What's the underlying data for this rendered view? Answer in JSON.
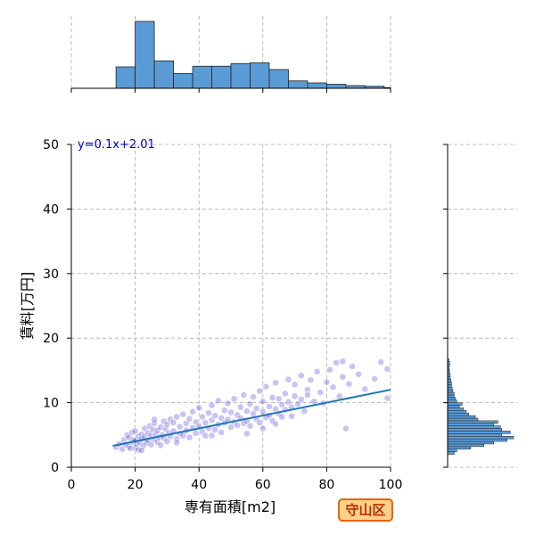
{
  "chart_data": {
    "type": "scatter",
    "xlabel": "専有面積[m2]",
    "ylabel": "賃料[万円]",
    "xlim": [
      0,
      100
    ],
    "ylim": [
      0,
      50
    ],
    "x_ticks": [
      "0",
      "20",
      "40",
      "60",
      "80",
      "100"
    ],
    "y_ticks": [
      "0",
      "10",
      "20",
      "30",
      "40",
      "50"
    ],
    "grid": true,
    "regression": {
      "label": "y=0.1x+2.01",
      "slope": 0.1,
      "intercept": 2.01,
      "x_range": [
        13,
        100
      ],
      "color": "#1f77b4"
    },
    "point_color": "#3a2ad0",
    "bar_color": "#5b9bd5",
    "points": [
      [
        14,
        3.1
      ],
      [
        15,
        3.6
      ],
      [
        16,
        2.8
      ],
      [
        16.5,
        4.2
      ],
      [
        17,
        3.5
      ],
      [
        17.5,
        5.0
      ],
      [
        18,
        3.2
      ],
      [
        18,
        4.6
      ],
      [
        18.5,
        2.9
      ],
      [
        19,
        3.9
      ],
      [
        19,
        5.4
      ],
      [
        19.5,
        4.3
      ],
      [
        20,
        3.0
      ],
      [
        20,
        4.1
      ],
      [
        20,
        5.6
      ],
      [
        20.5,
        3.6
      ],
      [
        21,
        4.8
      ],
      [
        21,
        2.7
      ],
      [
        21.5,
        3.9
      ],
      [
        22,
        5.1
      ],
      [
        22,
        4.4
      ],
      [
        22.5,
        3.3
      ],
      [
        23,
        6.0
      ],
      [
        23,
        4.7
      ],
      [
        23.5,
        3.8
      ],
      [
        24,
        5.3
      ],
      [
        24,
        4.1
      ],
      [
        24.5,
        6.4
      ],
      [
        25,
        4.9
      ],
      [
        25,
        3.5
      ],
      [
        25.5,
        5.8
      ],
      [
        26,
        4.3
      ],
      [
        26,
        6.8
      ],
      [
        26.5,
        5.1
      ],
      [
        27,
        3.9
      ],
      [
        27,
        5.7
      ],
      [
        27.5,
        4.6
      ],
      [
        28,
        6.2
      ],
      [
        28,
        3.4
      ],
      [
        28.5,
        5.0
      ],
      [
        29,
        7.1
      ],
      [
        29,
        4.5
      ],
      [
        29.5,
        5.9
      ],
      [
        30,
        4.0
      ],
      [
        30,
        6.6
      ],
      [
        30.5,
        5.3
      ],
      [
        31,
        7.4
      ],
      [
        31,
        4.8
      ],
      [
        32,
        5.6
      ],
      [
        32,
        6.9
      ],
      [
        33,
        4.4
      ],
      [
        33,
        7.8
      ],
      [
        34,
        5.2
      ],
      [
        34,
        6.3
      ],
      [
        35,
        4.9
      ],
      [
        35,
        8.2
      ],
      [
        36,
        5.7
      ],
      [
        36,
        6.8
      ],
      [
        37,
        4.6
      ],
      [
        37,
        7.5
      ],
      [
        38,
        6.1
      ],
      [
        38,
        8.6
      ],
      [
        39,
        5.3
      ],
      [
        39,
        7.0
      ],
      [
        40,
        6.4
      ],
      [
        40,
        9.2
      ],
      [
        41,
        5.5
      ],
      [
        41,
        7.8
      ],
      [
        42,
        6.9
      ],
      [
        42,
        4.9
      ],
      [
        43,
        8.4
      ],
      [
        43,
        6.0
      ],
      [
        44,
        7.3
      ],
      [
        44,
        9.6
      ],
      [
        45,
        5.8
      ],
      [
        45,
        8.0
      ],
      [
        46,
        6.6
      ],
      [
        46,
        10.3
      ],
      [
        47,
        7.6
      ],
      [
        47,
        5.4
      ],
      [
        48,
        8.8
      ],
      [
        48,
        6.9
      ],
      [
        49,
        7.4
      ],
      [
        49,
        9.9
      ],
      [
        50,
        6.2
      ],
      [
        50,
        8.5
      ],
      [
        51,
        7.0
      ],
      [
        51,
        10.6
      ],
      [
        52,
        8.1
      ],
      [
        52,
        6.5
      ],
      [
        53,
        9.3
      ],
      [
        53,
        7.6
      ],
      [
        54,
        6.8
      ],
      [
        54,
        11.2
      ],
      [
        55,
        8.7
      ],
      [
        55,
        7.1
      ],
      [
        56,
        9.8
      ],
      [
        56,
        6.4
      ],
      [
        57,
        8.3
      ],
      [
        57,
        10.9
      ],
      [
        58,
        7.5
      ],
      [
        58,
        9.1
      ],
      [
        59,
        6.9
      ],
      [
        59,
        11.8
      ],
      [
        60,
        8.6
      ],
      [
        60,
        10.2
      ],
      [
        61,
        7.7
      ],
      [
        61,
        12.5
      ],
      [
        62,
        9.4
      ],
      [
        62,
        8.0
      ],
      [
        63,
        10.8
      ],
      [
        63,
        7.2
      ],
      [
        64,
        9.0
      ],
      [
        64,
        13.1
      ],
      [
        65,
        8.3
      ],
      [
        65,
        10.6
      ],
      [
        66,
        9.7
      ],
      [
        66,
        7.8
      ],
      [
        67,
        11.4
      ],
      [
        67,
        8.9
      ],
      [
        68,
        10.1
      ],
      [
        68,
        13.6
      ],
      [
        69,
        9.3
      ],
      [
        69,
        7.9
      ],
      [
        70,
        11.0
      ],
      [
        70,
        12.8
      ],
      [
        71,
        9.8
      ],
      [
        72,
        14.2
      ],
      [
        72,
        10.5
      ],
      [
        73,
        8.7
      ],
      [
        74,
        12.0
      ],
      [
        74,
        11.2
      ],
      [
        75,
        13.5
      ],
      [
        76,
        10.2
      ],
      [
        77,
        14.8
      ],
      [
        78,
        11.6
      ],
      [
        79,
        9.9
      ],
      [
        80,
        13.2
      ],
      [
        81,
        15.1
      ],
      [
        82,
        12.4
      ],
      [
        83,
        16.2
      ],
      [
        84,
        11.0
      ],
      [
        85,
        14.0
      ],
      [
        85,
        16.4
      ],
      [
        86,
        6.0
      ],
      [
        87,
        12.9
      ],
      [
        88,
        15.6
      ],
      [
        90,
        14.4
      ],
      [
        92,
        12.1
      ],
      [
        95,
        13.7
      ],
      [
        97,
        16.3
      ],
      [
        99,
        15.2
      ],
      [
        99,
        10.7
      ],
      [
        22,
        2.6
      ],
      [
        26,
        7.4
      ],
      [
        33,
        3.8
      ],
      [
        44,
        4.9
      ],
      [
        55,
        5.2
      ],
      [
        60,
        6.0
      ],
      [
        64,
        6.7
      ]
    ],
    "x_histogram": {
      "bins": [
        [
          14,
          20,
          0.32
        ],
        [
          20,
          26,
          1.0
        ],
        [
          26,
          32,
          0.41
        ],
        [
          32,
          38,
          0.22
        ],
        [
          38,
          44,
          0.33
        ],
        [
          44,
          50,
          0.33
        ],
        [
          50,
          56,
          0.37
        ],
        [
          56,
          62,
          0.38
        ],
        [
          62,
          68,
          0.28
        ],
        [
          68,
          74,
          0.11
        ],
        [
          74,
          80,
          0.08
        ],
        [
          80,
          86,
          0.06
        ],
        [
          86,
          92,
          0.04
        ],
        [
          92,
          98,
          0.03
        ],
        [
          98,
          104,
          0.01
        ]
      ]
    },
    "y_histogram": {
      "bins": [
        [
          2.0,
          2.4,
          0.1
        ],
        [
          2.4,
          2.8,
          0.14
        ],
        [
          2.8,
          3.2,
          0.35
        ],
        [
          3.2,
          3.6,
          0.55
        ],
        [
          3.6,
          4.0,
          0.7
        ],
        [
          4.0,
          4.4,
          0.9
        ],
        [
          4.4,
          4.8,
          1.0
        ],
        [
          4.8,
          5.2,
          0.82
        ],
        [
          5.2,
          5.6,
          0.95
        ],
        [
          5.6,
          6.0,
          0.82
        ],
        [
          6.0,
          6.4,
          0.8
        ],
        [
          6.4,
          6.8,
          0.7
        ],
        [
          6.8,
          7.2,
          0.76
        ],
        [
          7.2,
          7.6,
          0.46
        ],
        [
          7.6,
          8.0,
          0.42
        ],
        [
          8.0,
          8.4,
          0.32
        ],
        [
          8.4,
          8.8,
          0.28
        ],
        [
          8.8,
          9.2,
          0.24
        ],
        [
          9.2,
          9.6,
          0.18
        ],
        [
          9.6,
          10.0,
          0.22
        ],
        [
          10.0,
          10.4,
          0.14
        ],
        [
          10.4,
          10.8,
          0.12
        ],
        [
          10.8,
          11.2,
          0.1
        ],
        [
          11.2,
          11.6,
          0.1
        ],
        [
          11.6,
          12.0,
          0.08
        ],
        [
          12.0,
          12.4,
          0.07
        ],
        [
          12.4,
          12.8,
          0.06
        ],
        [
          12.8,
          13.2,
          0.06
        ],
        [
          13.2,
          13.6,
          0.05
        ],
        [
          13.6,
          14.0,
          0.04
        ],
        [
          14.0,
          14.4,
          0.04
        ],
        [
          14.4,
          14.8,
          0.03
        ],
        [
          14.8,
          15.2,
          0.03
        ],
        [
          15.2,
          15.6,
          0.02
        ],
        [
          15.6,
          16.0,
          0.03
        ],
        [
          16.0,
          16.4,
          0.03
        ],
        [
          16.4,
          16.8,
          0.02
        ]
      ]
    }
  },
  "badge": {
    "label": "守山区"
  }
}
